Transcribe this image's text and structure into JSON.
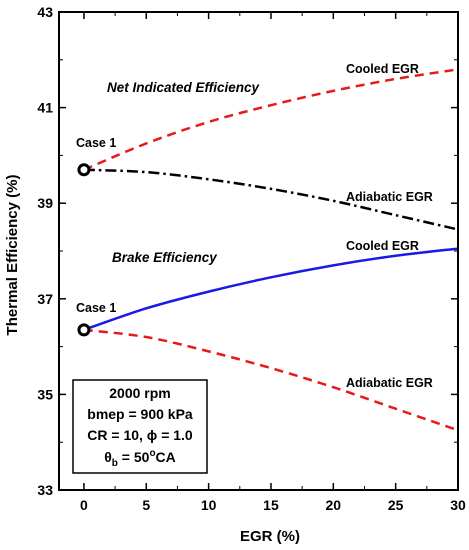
{
  "chart_data": {
    "type": "line",
    "xlabel": "EGR (%)",
    "ylabel": "Thermal Efficiency (%)",
    "xlim": [
      -2,
      30
    ],
    "ylim": [
      33,
      43
    ],
    "xticks": [
      0,
      5,
      10,
      15,
      20,
      25,
      30
    ],
    "yticks": [
      33,
      35,
      37,
      39,
      41,
      43
    ],
    "grid": false,
    "series": [
      {
        "name": "Cooled EGR",
        "color": "#e8191b",
        "dash": "dashed",
        "x": [
          0,
          5,
          10,
          15,
          20,
          25,
          30
        ],
        "y": [
          39.7,
          40.25,
          40.7,
          41.05,
          41.35,
          41.6,
          41.8
        ]
      },
      {
        "name": "Adiabatic EGR",
        "color": "#000000",
        "dash": "dashdot",
        "x": [
          0,
          5,
          10,
          15,
          20,
          25,
          30
        ],
        "y": [
          39.7,
          39.65,
          39.5,
          39.3,
          39.05,
          38.75,
          38.45
        ]
      },
      {
        "name": "Cooled EGR",
        "color": "#1a1ae6",
        "dash": "solid",
        "x": [
          0,
          5,
          10,
          15,
          20,
          25,
          30
        ],
        "y": [
          36.35,
          36.8,
          37.15,
          37.45,
          37.7,
          37.9,
          38.05
        ]
      },
      {
        "name": "Adiabatic EGR",
        "color": "#e8191b",
        "dash": "dashed",
        "x": [
          0,
          5,
          10,
          15,
          20,
          25,
          30
        ],
        "y": [
          36.35,
          36.2,
          35.9,
          35.55,
          35.15,
          34.7,
          34.25
        ]
      }
    ],
    "markers": [
      {
        "x": 0,
        "y": 39.7,
        "label": "Case 1"
      },
      {
        "x": 0,
        "y": 36.35,
        "label": "Case 1"
      }
    ],
    "annotations": {
      "net": "Net Indicated Efficiency",
      "brake": "Brake Efficiency",
      "cooled_top": "Cooled EGR",
      "adiabatic_top": "Adiabatic EGR",
      "cooled_bottom": "Cooled EGR",
      "adiabatic_bottom": "Adiabatic EGR"
    },
    "info_box": {
      "line1": "2000 rpm",
      "line2": "bmep = 900 kPa",
      "line3": "CR = 10, ϕ = 1.0",
      "line4_pre": "θ",
      "line4_sub": "b",
      "line4_mid": " = 50",
      "line4_sup": "o",
      "line4_post": "CA"
    }
  }
}
